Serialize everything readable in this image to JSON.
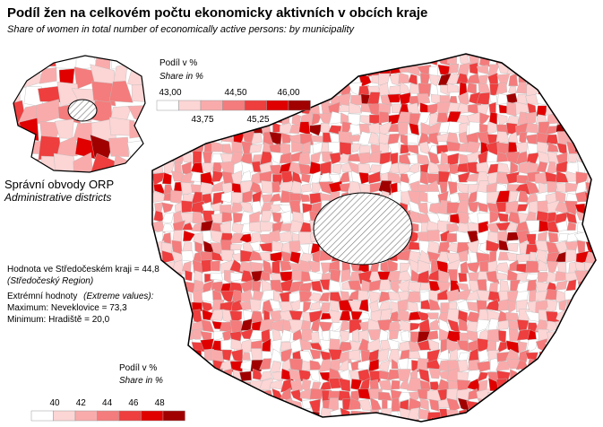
{
  "header": {
    "title": "Podíl žen na celkovém počtu ekonomicky aktivních v obcích kraje",
    "subtitle": "Share of women in total number of economically active persons: by municipality"
  },
  "inset_legend": {
    "title": "Podíl v %",
    "subtitle": "Share in %",
    "labels_top": [
      "43,00",
      "44,50",
      "46,00"
    ],
    "labels_bottom": [
      "43,75",
      "45,25"
    ]
  },
  "inset_caption": {
    "title": "Správní obvody  ORP",
    "subtitle": "Administrative districts"
  },
  "stats": {
    "region_value": "Hodnota ve Středočeském kraji = 44,8",
    "region_name": "(Středočeský Region)",
    "extremes_label": "Extrémní hodnoty",
    "extremes_label_en": "(Extreme values):",
    "maximum": "Maximum: Neveklovice = 73,3",
    "minimum": "Minimum: Hradiště = 20,0"
  },
  "main_legend": {
    "title": "Podíl v %",
    "subtitle": "Share in %",
    "labels": [
      "40",
      "42",
      "44",
      "46",
      "48"
    ]
  }
}
